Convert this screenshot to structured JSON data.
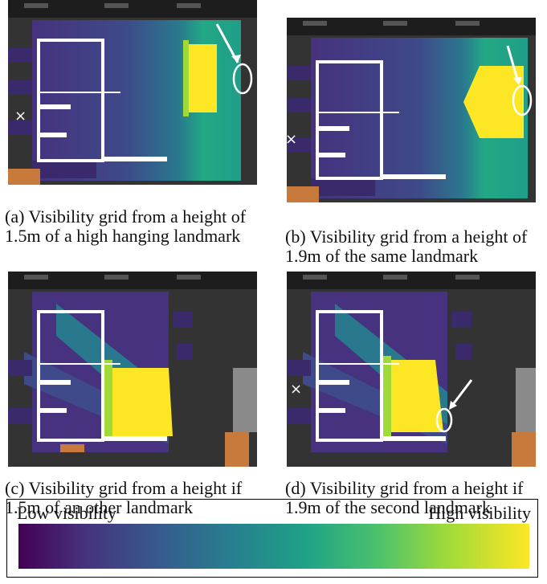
{
  "figure": {
    "panels": [
      {
        "id": "a",
        "caption": "(a) Visibility grid from a height of 1.5m of a high hanging landmark"
      },
      {
        "id": "b",
        "caption": "(b) Visibility grid from a height of 1.9m of the same landmark"
      },
      {
        "id": "c",
        "caption": "(c) Visibility grid from a height if 1.5m of an other landmark"
      },
      {
        "id": "d",
        "caption": "(d) Visibility grid from a height if 1.9m of the second landmark"
      }
    ],
    "colorbar": {
      "low_label": "Low visibility",
      "high_label": "High visibility",
      "colors": [
        "#440154",
        "#46327e",
        "#365c8d",
        "#277f8e",
        "#1fa187",
        "#4ac16d",
        "#a0da39",
        "#fde725"
      ]
    }
  }
}
